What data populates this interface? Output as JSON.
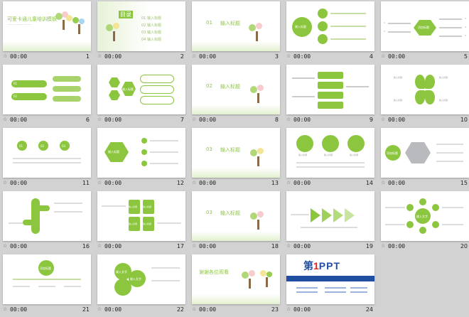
{
  "slides": [
    {
      "num": "1",
      "time": "00:00",
      "title": "可爱卡通儿童培训模板"
    },
    {
      "num": "2",
      "time": "00:00",
      "toc_title": "目录",
      "toc": [
        {
          "n": "01",
          "t": "输入标题"
        },
        {
          "n": "02",
          "t": "输入标题"
        },
        {
          "n": "03",
          "t": "输入标题"
        },
        {
          "n": "04",
          "t": "输入标题"
        }
      ]
    },
    {
      "num": "3",
      "time": "00:00",
      "sec_num": "01",
      "sec_title": "输入标题"
    },
    {
      "num": "4",
      "time": "00:00",
      "center": "输入标题"
    },
    {
      "num": "5",
      "time": "00:00",
      "center": "添加标题",
      "nums": [
        "1",
        "2",
        "3",
        "4",
        "5"
      ]
    },
    {
      "num": "6",
      "time": "00:00",
      "items": [
        "01",
        "02"
      ]
    },
    {
      "num": "7",
      "time": "00:00",
      "center": "输入标题"
    },
    {
      "num": "8",
      "time": "00:00",
      "sec_num": "02",
      "sec_title": "输入标题"
    },
    {
      "num": "9",
      "time": "00:00"
    },
    {
      "num": "10",
      "time": "00:00",
      "labels": [
        "输入标题",
        "输入标题",
        "输入标题",
        "输入标题"
      ]
    },
    {
      "num": "11",
      "time": "00:00",
      "items": [
        "01",
        "02",
        "03"
      ]
    },
    {
      "num": "12",
      "time": "00:00",
      "center": "输入标题"
    },
    {
      "num": "13",
      "time": "00:00",
      "sec_num": "03",
      "sec_title": "输入标题"
    },
    {
      "num": "14",
      "time": "00:00",
      "labels": [
        "输入标题",
        "输入标题",
        "输入标题"
      ]
    },
    {
      "num": "15",
      "time": "00:00",
      "center": "添加标题"
    },
    {
      "num": "16",
      "time": "00:00"
    },
    {
      "num": "17",
      "time": "00:00",
      "labels": [
        "输入标题",
        "输入标题",
        "输入标题",
        "输入标题"
      ]
    },
    {
      "num": "18",
      "time": "00:00",
      "sec_num": "03",
      "sec_title": "输入标题"
    },
    {
      "num": "19",
      "time": "00:00"
    },
    {
      "num": "20",
      "time": "00:00",
      "center": "输入文字",
      "nums": [
        "1",
        "2",
        "3",
        "4",
        "5",
        "6"
      ]
    },
    {
      "num": "21",
      "time": "00:00",
      "center": "添加标题"
    },
    {
      "num": "22",
      "time": "00:00",
      "labels": [
        "输入文字",
        "输入文字"
      ]
    },
    {
      "num": "23",
      "time": "00:00",
      "title": "谢谢各位观看"
    },
    {
      "num": "24",
      "time": "00:00",
      "brand_a": "第",
      "brand_b": "1",
      "brand_c": "PPT"
    }
  ],
  "colors": {
    "accent": "#8cc63f",
    "accent_light": "#c7dfa6",
    "background": "#d2d2d2",
    "brand_blue": "#1f4ea3",
    "brand_red": "#e2231a"
  }
}
